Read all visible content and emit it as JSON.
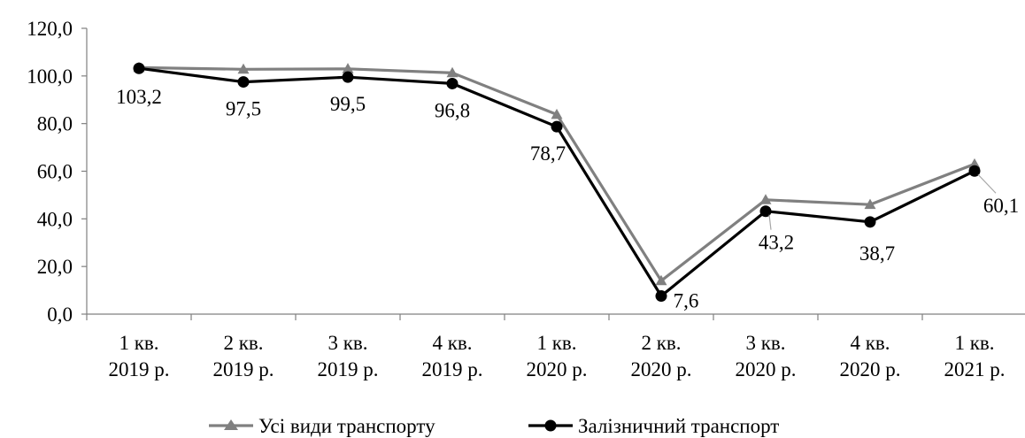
{
  "chart_data": {
    "type": "line",
    "title": "",
    "xlabel": "",
    "ylabel": "",
    "ylim": [
      0,
      120
    ],
    "yticks": [
      "0,0",
      "20,0",
      "40,0",
      "60,0",
      "80,0",
      "100,0",
      "120,0"
    ],
    "categories": [
      [
        "1 кв.",
        "2019 р."
      ],
      [
        "2 кв.",
        "2019 р."
      ],
      [
        "3 кв.",
        "2019 р."
      ],
      [
        "4 кв.",
        "2019 р."
      ],
      [
        "1 кв.",
        "2020 р."
      ],
      [
        "2 кв.",
        "2020 р."
      ],
      [
        "3 кв.",
        "2020 р."
      ],
      [
        "4 кв.",
        "2020 р."
      ],
      [
        "1 кв.",
        "2021 р."
      ]
    ],
    "series": [
      {
        "name": "Усі види транспорту",
        "color": "#808080",
        "marker": "triangle",
        "values": [
          103.5,
          102.8,
          103.0,
          101.3,
          83.8,
          14.0,
          48.0,
          46.0,
          63.0
        ]
      },
      {
        "name": "Залізничний транспорт",
        "color": "#000000",
        "marker": "circle",
        "values": [
          103.2,
          97.5,
          99.5,
          96.8,
          78.7,
          7.6,
          43.2,
          38.7,
          60.1
        ],
        "data_labels": [
          "103,2",
          "97,5",
          "99,5",
          "96,8",
          "78,7",
          "7,6",
          "43,2",
          "38,7",
          "60,1"
        ]
      }
    ],
    "legend_position": "bottom",
    "grid": false
  }
}
